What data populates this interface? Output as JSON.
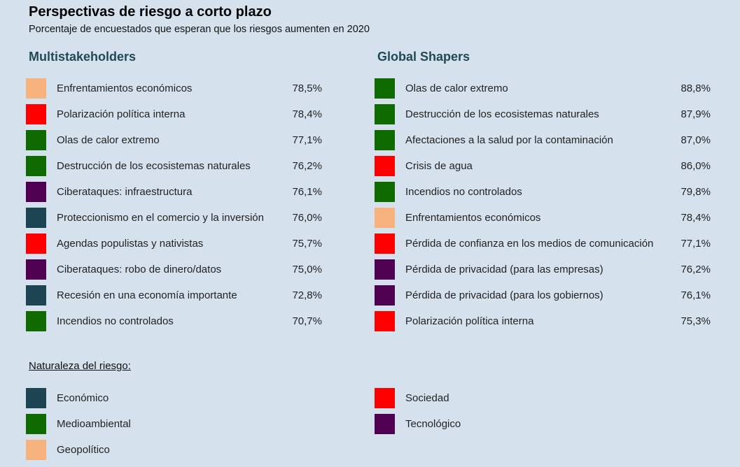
{
  "colors": {
    "Económico": "#1d4452",
    "Medioambiental": "#0f6b00",
    "Geopolítico": "#f8b27e",
    "Sociedad": "#ff0000",
    "Tecnológico": "#4f0050"
  },
  "chart_data": {
    "type": "table",
    "title": "Perspectivas de riesgo a corto plazo",
    "subtitle": "Porcentaje de encuestados que esperan que los riesgos aumenten en 2020",
    "groups": [
      {
        "name": "Multistakeholders",
        "items": [
          {
            "label": "Enfrentamientos económicos",
            "value": "78,5%",
            "category": "Geopolítico"
          },
          {
            "label": "Polarización política interna",
            "value": "78,4%",
            "category": "Sociedad"
          },
          {
            "label": "Olas de calor extremo",
            "value": "77,1%",
            "category": "Medioambiental"
          },
          {
            "label": "Destrucción de los ecosistemas naturales",
            "value": "76,2%",
            "category": "Medioambiental"
          },
          {
            "label": "Ciberataques: infraestructura",
            "value": "76,1%",
            "category": "Tecnológico"
          },
          {
            "label": "Proteccionismo en el comercio y la inversión",
            "value": "76,0%",
            "category": "Económico"
          },
          {
            "label": "Agendas populistas y nativistas",
            "value": "75,7%",
            "category": "Sociedad"
          },
          {
            "label": "Ciberataques: robo de dinero/datos",
            "value": "75,0%",
            "category": "Tecnológico"
          },
          {
            "label": "Recesión en una economía importante",
            "value": "72,8%",
            "category": "Económico"
          },
          {
            "label": "Incendios no controlados",
            "value": "70,7%",
            "category": "Medioambiental"
          }
        ]
      },
      {
        "name": "Global Shapers",
        "items": [
          {
            "label": "Olas de calor extremo",
            "value": "88,8%",
            "category": "Medioambiental"
          },
          {
            "label": "Destrucción de los ecosistemas naturales",
            "value": "87,9%",
            "category": "Medioambiental"
          },
          {
            "label": "Afectaciones a la salud por la contaminación",
            "value": "87,0%",
            "category": "Medioambiental"
          },
          {
            "label": "Crisis de agua",
            "value": "86,0%",
            "category": "Sociedad"
          },
          {
            "label": "Incendios no controlados",
            "value": "79,8%",
            "category": "Medioambiental"
          },
          {
            "label": "Enfrentamientos económicos",
            "value": "78,4%",
            "category": "Geopolítico"
          },
          {
            "label": "Pérdida de confianza en los medios de comunicación",
            "value": "77,1%",
            "category": "Sociedad"
          },
          {
            "label": "Pérdida de privacidad (para las empresas)",
            "value": "76,2%",
            "category": "Tecnológico"
          },
          {
            "label": "Pérdida de privacidad (para los gobiernos)",
            "value": "76,1%",
            "category": "Tecnológico"
          },
          {
            "label": "Polarización política interna",
            "value": "75,3%",
            "category": "Sociedad"
          }
        ]
      }
    ],
    "legend_title": "Naturaleza del riesgo:",
    "legend": [
      {
        "label": "Económico"
      },
      {
        "label": "Medioambiental"
      },
      {
        "label": "Geopolítico"
      },
      {
        "label": "Sociedad"
      },
      {
        "label": "Tecnológico"
      }
    ]
  }
}
